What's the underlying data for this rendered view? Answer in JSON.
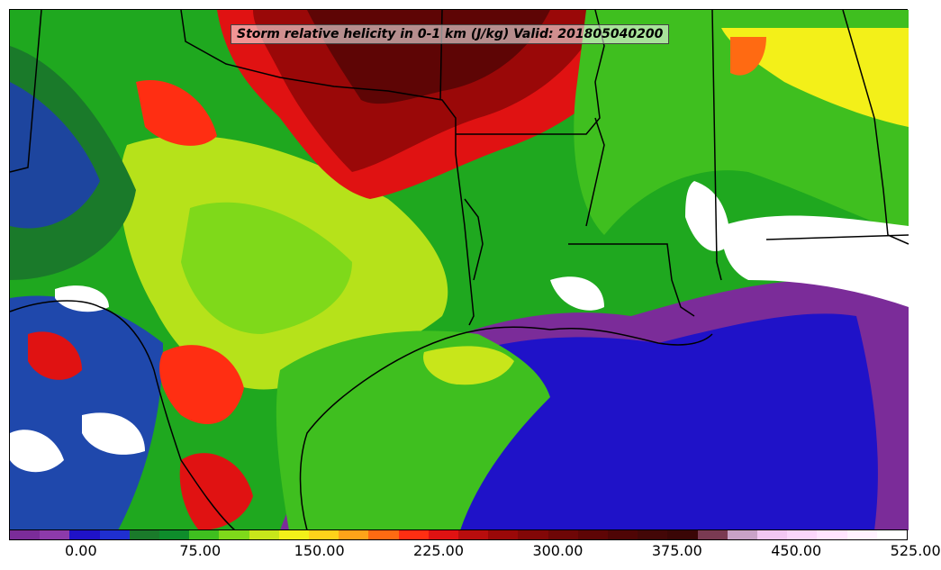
{
  "title": "Storm relative helicity in 0-1 km (J/kg) Valid: 201805040200",
  "colorbar": {
    "colors": [
      "#7b2c99",
      "#8d3aaa",
      "#1f12c8",
      "#1f2fd0",
      "#1a7a2a",
      "#0e8c2b",
      "#3fbf1f",
      "#7fd91a",
      "#c8e61a",
      "#f3f019",
      "#ffd21a",
      "#ffa319",
      "#ff6a12",
      "#ff2e12",
      "#e01212",
      "#b80d0d",
      "#9a0808",
      "#820707",
      "#6e0606",
      "#5e0505",
      "#4f0505",
      "#430707",
      "#3a0606",
      "#7a3a52",
      "#c9a2c7",
      "#f2c7f2",
      "#fbd6fb",
      "#ffe4ff",
      "#fff2ff",
      "#ffffff"
    ],
    "tick_labels": [
      "0.00",
      "75.00",
      "150.00",
      "225.00",
      "300.00",
      "375.00",
      "450.00",
      "525.00"
    ]
  },
  "regions": {
    "storm_core_north": "#6e0606",
    "red_band": "#e01212",
    "gulf_blue": "#1f12c8",
    "gulf_purple": "#7b2c99",
    "white_high": "#ffffff",
    "green_land": "#1fa81f",
    "yellow": "#f3f019"
  }
}
